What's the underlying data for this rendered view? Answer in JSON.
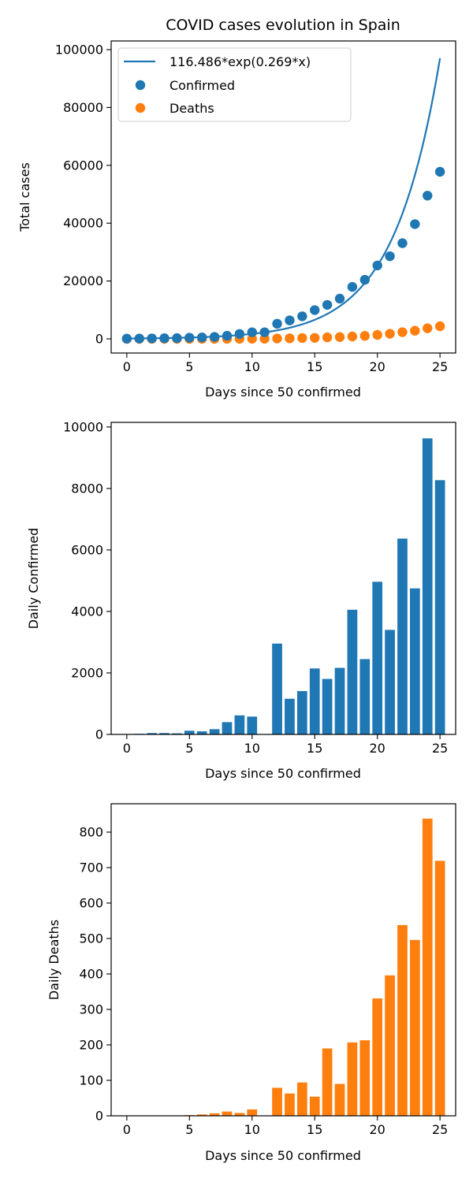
{
  "colors": {
    "confirmed": "#1f77b4",
    "deaths": "#ff7f0e",
    "axis": "#000000"
  },
  "chart_data": [
    {
      "type": "scatter",
      "title": "COVID cases evolution in Spain",
      "xlabel": "Days since 50 confirmed",
      "ylabel": "Total cases",
      "xlim": [
        -1.25,
        26.25
      ],
      "ylim": [
        -4900,
        103000
      ],
      "xticks": [
        0,
        5,
        10,
        15,
        20,
        25
      ],
      "yticks": [
        0,
        20000,
        40000,
        60000,
        80000,
        100000
      ],
      "grid": false,
      "legend_position": "top-left",
      "fit": {
        "name": "116.486*exp(0.269*x)",
        "a": 116.486,
        "b": 0.269,
        "x_range": [
          0,
          25
        ]
      },
      "x": [
        0,
        1,
        2,
        3,
        4,
        5,
        6,
        7,
        8,
        9,
        10,
        11,
        12,
        13,
        14,
        15,
        16,
        17,
        18,
        19,
        20,
        21,
        22,
        23,
        24,
        25
      ],
      "series": [
        {
          "name": "Confirmed",
          "values": [
            84,
            120,
            165,
            222,
            259,
            400,
            500,
            673,
            1073,
            1695,
            2277,
            2277,
            5232,
            6391,
            7798,
            9942,
            11748,
            13910,
            17963,
            20410,
            25374,
            28572,
            33089,
            39673,
            49515,
            57786
          ]
        },
        {
          "name": "Deaths",
          "values": [
            0,
            0,
            0,
            0,
            1,
            3,
            5,
            10,
            17,
            29,
            47,
            47,
            127,
            189,
            281,
            335,
            526,
            616,
            823,
            1039,
            1375,
            1770,
            2311,
            2808,
            3647,
            4365
          ]
        }
      ]
    },
    {
      "type": "bar",
      "xlabel": "Days since 50 confirmed",
      "ylabel": "Daily Confirmed",
      "xlim": [
        -1.25,
        26.25
      ],
      "ylim": [
        0,
        10150
      ],
      "xticks": [
        0,
        5,
        10,
        15,
        20,
        25
      ],
      "yticks": [
        0,
        2000,
        4000,
        6000,
        8000,
        10000
      ],
      "grid": false,
      "x": [
        0,
        1,
        2,
        3,
        4,
        5,
        6,
        7,
        8,
        9,
        10,
        11,
        12,
        13,
        14,
        15,
        16,
        17,
        18,
        19,
        20,
        21,
        22,
        23,
        24,
        25
      ],
      "values": [
        0,
        20,
        45,
        45,
        35,
        120,
        100,
        170,
        400,
        620,
        580,
        0,
        2955,
        1160,
        1410,
        2145,
        1805,
        2165,
        4055,
        2450,
        4965,
        3400,
        6370,
        4750,
        9630,
        8270
      ]
    },
    {
      "type": "bar",
      "xlabel": "Days since 50 confirmed",
      "ylabel": "Daily Deaths",
      "xlim": [
        -1.25,
        26.25
      ],
      "ylim": [
        0,
        880
      ],
      "xticks": [
        0,
        5,
        10,
        15,
        20,
        25
      ],
      "yticks": [
        0,
        100,
        200,
        300,
        400,
        500,
        600,
        700,
        800
      ],
      "grid": false,
      "x": [
        0,
        1,
        2,
        3,
        4,
        5,
        6,
        7,
        8,
        9,
        10,
        11,
        12,
        13,
        14,
        15,
        16,
        17,
        18,
        19,
        20,
        21,
        22,
        23,
        24,
        25
      ],
      "values": [
        0,
        0,
        0,
        0,
        1,
        2,
        4,
        7,
        12,
        8,
        18,
        0,
        79,
        63,
        94,
        54,
        190,
        90,
        207,
        213,
        331,
        396,
        538,
        496,
        838,
        719
      ]
    }
  ]
}
